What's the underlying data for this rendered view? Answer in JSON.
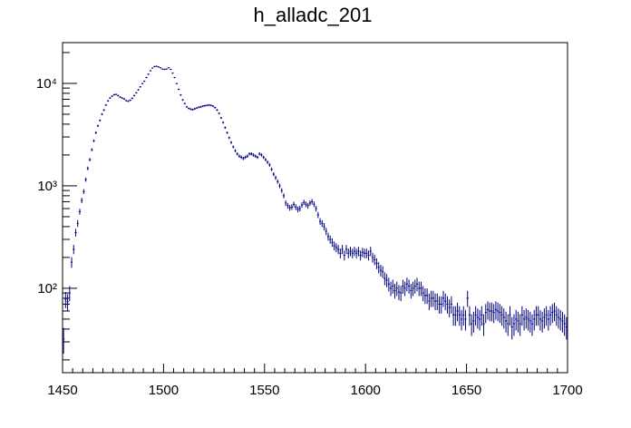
{
  "chart_data": {
    "type": "scatter",
    "title": "h_alladc_201",
    "xlabel": "",
    "ylabel": "",
    "xlim": [
      1450,
      1700
    ],
    "ylim": [
      15,
      25000
    ],
    "yscale": "log",
    "grid": false,
    "legend": "none",
    "x_ticks": [
      1450,
      1500,
      1550,
      1600,
      1650,
      1700
    ],
    "x_tick_labels": [
      "1450",
      "1500",
      "1550",
      "1600",
      "1650",
      "1700"
    ],
    "y_ticks": [
      100,
      1000,
      10000
    ],
    "y_tick_labels": [
      "10²",
      "10³",
      "10⁴"
    ],
    "marker_color": "#00007f",
    "series": [
      {
        "x": [
          1450,
          1451,
          1452,
          1453,
          1454,
          1455,
          1456,
          1457,
          1458,
          1459,
          1460,
          1461,
          1462,
          1463,
          1464,
          1465,
          1466,
          1467,
          1468,
          1469,
          1470,
          1471,
          1472,
          1473,
          1474,
          1475,
          1476,
          1477,
          1478,
          1479,
          1480,
          1481,
          1482,
          1483,
          1484,
          1485,
          1486,
          1487,
          1488,
          1489,
          1490,
          1491,
          1492,
          1493,
          1494,
          1495,
          1496,
          1497,
          1498,
          1499,
          1500,
          1501,
          1502,
          1503,
          1504,
          1505,
          1506,
          1507,
          1508,
          1509,
          1510,
          1511,
          1512,
          1513,
          1514,
          1515,
          1516,
          1517,
          1518,
          1519,
          1520,
          1521,
          1522,
          1523,
          1524,
          1525,
          1526,
          1527,
          1528,
          1529,
          1530,
          1531,
          1532,
          1533,
          1534,
          1535,
          1536,
          1537,
          1538,
          1539,
          1540,
          1541,
          1542,
          1543,
          1544,
          1545,
          1546,
          1547,
          1548,
          1549,
          1550,
          1551,
          1552,
          1553,
          1554,
          1555,
          1556,
          1557,
          1558,
          1559,
          1560,
          1561,
          1562,
          1563,
          1564,
          1565,
          1566,
          1567,
          1568,
          1569,
          1570,
          1571,
          1572,
          1573,
          1574,
          1575,
          1576,
          1577,
          1578,
          1579,
          1580,
          1581,
          1582,
          1583,
          1584,
          1585,
          1586,
          1587,
          1588,
          1589,
          1590,
          1591,
          1592,
          1593,
          1594,
          1595,
          1596,
          1597,
          1598,
          1599,
          1600,
          1601,
          1602,
          1603,
          1604,
          1605,
          1606,
          1607,
          1608,
          1609,
          1610,
          1611,
          1612,
          1613,
          1614,
          1615,
          1616,
          1617,
          1618,
          1619,
          1620,
          1621,
          1622,
          1623,
          1624,
          1625,
          1626,
          1627,
          1628,
          1629,
          1630,
          1631,
          1632,
          1633,
          1634,
          1635,
          1636,
          1637,
          1638,
          1639,
          1640,
          1641,
          1642,
          1643,
          1644,
          1645,
          1646,
          1647,
          1648,
          1649,
          1650,
          1651,
          1652,
          1653,
          1654,
          1655,
          1656,
          1657,
          1658,
          1659,
          1660,
          1661,
          1662,
          1663,
          1664,
          1665,
          1666,
          1667,
          1668,
          1669,
          1670,
          1671,
          1672,
          1673,
          1674,
          1675,
          1676,
          1677,
          1678,
          1679,
          1680,
          1681,
          1682,
          1683,
          1684,
          1685,
          1686,
          1687,
          1688,
          1689,
          1690,
          1691,
          1692,
          1693,
          1694,
          1695,
          1696,
          1697,
          1698,
          1699
        ],
        "y": [
          32,
          78,
          74,
          90,
          180,
          240,
          350,
          430,
          560,
          720,
          880,
          1150,
          1480,
          1800,
          2250,
          2750,
          3300,
          3850,
          4350,
          5000,
          5500,
          6150,
          6750,
          7200,
          7500,
          7750,
          7800,
          7600,
          7350,
          7200,
          7050,
          6800,
          6700,
          6850,
          7150,
          7600,
          8100,
          8650,
          9250,
          9950,
          10500,
          11400,
          12300,
          13300,
          14100,
          14600,
          14700,
          14500,
          14200,
          13800,
          13700,
          13800,
          14200,
          13700,
          12600,
          11400,
          9950,
          8750,
          7700,
          6900,
          6350,
          5900,
          5700,
          5600,
          5550,
          5650,
          5750,
          5850,
          5900,
          6000,
          6050,
          6100,
          6150,
          6100,
          6000,
          5800,
          5500,
          5100,
          4600,
          4150,
          3700,
          3300,
          2950,
          2650,
          2400,
          2200,
          2050,
          1950,
          1900,
          1850,
          1900,
          1950,
          2050,
          2050,
          2000,
          1950,
          1900,
          2050,
          2000,
          1900,
          1800,
          1700,
          1600,
          1450,
          1300,
          1200,
          1100,
          1000,
          900,
          800,
          680,
          640,
          610,
          620,
          660,
          620,
          590,
          600,
          650,
          690,
          660,
          640,
          680,
          700,
          660,
          600,
          520,
          450,
          430,
          400,
          360,
          320,
          300,
          280,
          260,
          250,
          240,
          220,
          240,
          210,
          240,
          220,
          230,
          220,
          230,
          220,
          230,
          210,
          225,
          220,
          220,
          210,
          230,
          200,
          190,
          175,
          160,
          150,
          145,
          125,
          120,
          110,
          100,
          105,
          95,
          100,
          92,
          90,
          105,
          100,
          110,
          105,
          95,
          100,
          105,
          110,
          100,
          100,
          90,
          85,
          85,
          75,
          80,
          80,
          75,
          75,
          70,
          70,
          80,
          75,
          70,
          65,
          70,
          55,
          55,
          60,
          55,
          50,
          55,
          50,
          80,
          55,
          45,
          48,
          55,
          52,
          50,
          55,
          45,
          58,
          62,
          60,
          60,
          58,
          62,
          60,
          58,
          55,
          52,
          48,
          45,
          55,
          42,
          45,
          50,
          48,
          45,
          55,
          50,
          52,
          50,
          48,
          45,
          50,
          55,
          55,
          50,
          48,
          52,
          55,
          50,
          55,
          58,
          60,
          55,
          52,
          50,
          48,
          45,
          42
        ]
      }
    ]
  }
}
